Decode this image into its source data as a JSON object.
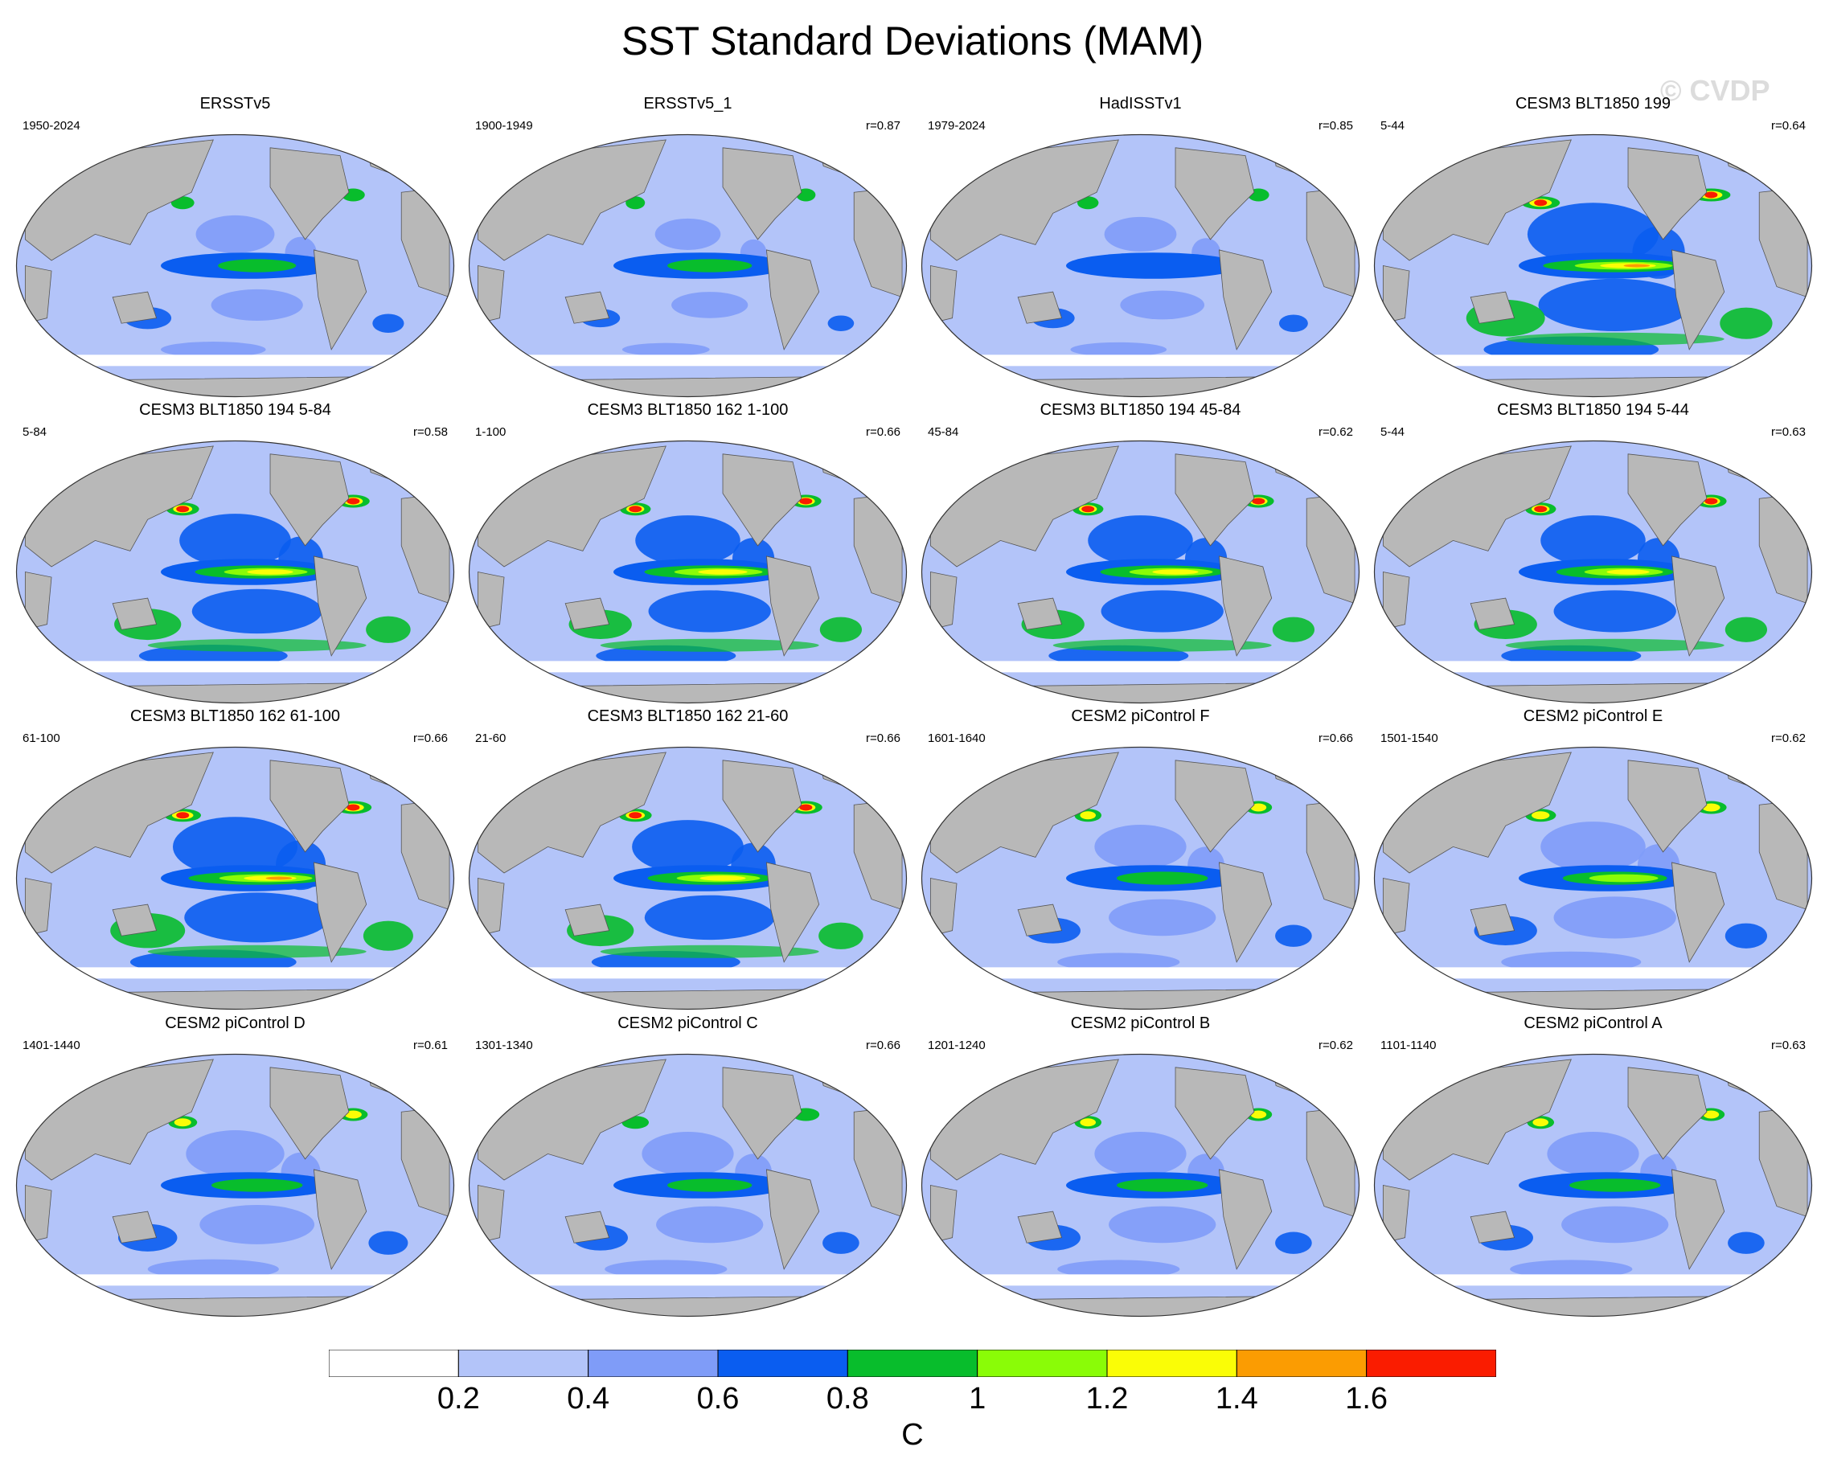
{
  "title": "SST Standard Deviations (MAM)",
  "watermark": "© CVDP",
  "colors": {
    "land": "#b8b8b8",
    "ocean_low": "#ffffff",
    "levels": [
      "#ffffff",
      "#b3c4f9",
      "#7f9cf8",
      "#0a5df0",
      "#08bd2c",
      "#8afc07",
      "#fafd06",
      "#fb9c02",
      "#fa1c00"
    ]
  },
  "panels": [
    {
      "title": "ERSSTv5",
      "period": "1950-2024",
      "r": "",
      "intensity": 0.35,
      "blob": 0.6
    },
    {
      "title": "ERSSTv5_1",
      "period": "1900-1949",
      "r": "r=0.87",
      "intensity": 0.4,
      "blob": 0.5
    },
    {
      "title": "HadISSTv1",
      "period": "1979-2024",
      "r": "r=0.85",
      "intensity": 0.3,
      "blob": 0.55
    },
    {
      "title": "CESM3 BLT1850 199",
      "period": "5-44",
      "r": "r=0.64",
      "intensity": 0.85,
      "blob": 1.0
    },
    {
      "title": "CESM3 BLT1850 194 5-84",
      "period": "5-84",
      "r": "r=0.58",
      "intensity": 0.7,
      "blob": 0.85
    },
    {
      "title": "CESM3 BLT1850 162 1-100",
      "period": "1-100",
      "r": "r=0.66",
      "intensity": 0.75,
      "blob": 0.8
    },
    {
      "title": "CESM3 BLT1850 194 45-84",
      "period": "45-84",
      "r": "r=0.62",
      "intensity": 0.7,
      "blob": 0.8
    },
    {
      "title": "CESM3 BLT1850 194 5-44",
      "period": "5-44",
      "r": "r=0.63",
      "intensity": 0.65,
      "blob": 0.8
    },
    {
      "title": "CESM3 BLT1850 162 61-100",
      "period": "61-100",
      "r": "r=0.66",
      "intensity": 0.8,
      "blob": 0.95
    },
    {
      "title": "CESM3 BLT1850 162 21-60",
      "period": "21-60",
      "r": "r=0.66",
      "intensity": 0.7,
      "blob": 0.85
    },
    {
      "title": "CESM2 piControl F",
      "period": "1601-1640",
      "r": "r=0.66",
      "intensity": 0.45,
      "blob": 0.7
    },
    {
      "title": "CESM2 piControl E",
      "period": "1501-1540",
      "r": "r=0.62",
      "intensity": 0.55,
      "blob": 0.8
    },
    {
      "title": "CESM2 piControl D",
      "period": "1401-1440",
      "r": "r=0.61",
      "intensity": 0.45,
      "blob": 0.75
    },
    {
      "title": "CESM2 piControl C",
      "period": "1301-1340",
      "r": "r=0.66",
      "intensity": 0.4,
      "blob": 0.7
    },
    {
      "title": "CESM2 piControl B",
      "period": "1201-1240",
      "r": "r=0.62",
      "intensity": 0.45,
      "blob": 0.7
    },
    {
      "title": "CESM2 piControl A",
      "period": "1101-1140",
      "r": "r=0.63",
      "intensity": 0.45,
      "blob": 0.7
    }
  ],
  "colorbar": {
    "unit": "C",
    "tick_labels": [
      "0.2",
      "0.4",
      "0.6",
      "0.8",
      "1",
      "1.2",
      "1.4",
      "1.6"
    ],
    "n_boxes": 9
  }
}
